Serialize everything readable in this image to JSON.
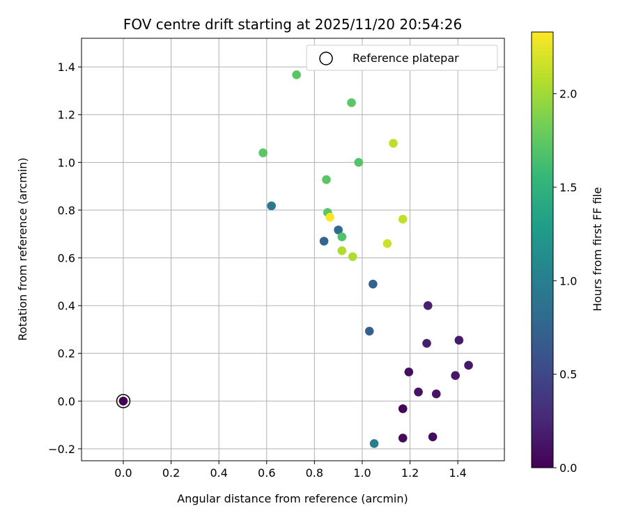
{
  "chart_data": {
    "type": "scatter",
    "title": "FOV centre drift starting at 2025/11/20 20:54:26",
    "xlabel": "Angular distance from reference (arcmin)",
    "ylabel": "Rotation from reference (arcmin)",
    "xlim": [
      -0.175,
      1.595
    ],
    "ylim": [
      -0.25,
      1.52
    ],
    "xticks": [
      0.0,
      0.2,
      0.4,
      0.6,
      0.8,
      1.0,
      1.2,
      1.4
    ],
    "xtick_labels": [
      "0.0",
      "0.2",
      "0.4",
      "0.6",
      "0.8",
      "1.0",
      "1.2",
      "1.4"
    ],
    "yticks": [
      -0.2,
      0.0,
      0.2,
      0.4,
      0.6,
      0.8,
      1.0,
      1.2,
      1.4
    ],
    "ytick_labels": [
      "−0.2",
      "0.0",
      "0.2",
      "0.4",
      "0.6",
      "0.8",
      "1.0",
      "1.2",
      "1.4"
    ],
    "grid": true,
    "legend": {
      "label": "Reference platepar",
      "location": "top-right"
    },
    "reference_point": {
      "x": 0.0,
      "y": 0.0
    },
    "colorbar": {
      "label": "Hours from first FF file",
      "min": 0.0,
      "max": 2.33,
      "colormap": "viridis",
      "ticks": [
        0.0,
        0.5,
        1.0,
        1.5,
        2.0
      ],
      "tick_labels": [
        "0.0",
        "0.5",
        "1.0",
        "1.5",
        "2.0"
      ]
    },
    "points": [
      {
        "x": 0.0,
        "y": 0.0,
        "c": 0.0
      },
      {
        "x": 1.17,
        "y": -0.032,
        "c": 0.02
      },
      {
        "x": 1.17,
        "y": -0.155,
        "c": 0.05
      },
      {
        "x": 1.295,
        "y": -0.15,
        "c": 0.07
      },
      {
        "x": 1.195,
        "y": 0.122,
        "c": 0.09
      },
      {
        "x": 1.235,
        "y": 0.038,
        "c": 0.11
      },
      {
        "x": 1.31,
        "y": 0.03,
        "c": 0.12
      },
      {
        "x": 1.39,
        "y": 0.107,
        "c": 0.14
      },
      {
        "x": 1.445,
        "y": 0.15,
        "c": 0.15
      },
      {
        "x": 1.405,
        "y": 0.255,
        "c": 0.17
      },
      {
        "x": 1.27,
        "y": 0.242,
        "c": 0.19
      },
      {
        "x": 1.275,
        "y": 0.4,
        "c": 0.21
      },
      {
        "x": 1.03,
        "y": 0.293,
        "c": 0.7
      },
      {
        "x": 1.045,
        "y": 0.49,
        "c": 0.72
      },
      {
        "x": 0.84,
        "y": 0.67,
        "c": 0.75
      },
      {
        "x": 0.9,
        "y": 0.717,
        "c": 0.8
      },
      {
        "x": 0.62,
        "y": 0.818,
        "c": 0.95
      },
      {
        "x": 1.05,
        "y": -0.178,
        "c": 1.0
      },
      {
        "x": 0.915,
        "y": 0.688,
        "c": 1.68
      },
      {
        "x": 0.855,
        "y": 0.79,
        "c": 1.72
      },
      {
        "x": 0.85,
        "y": 0.928,
        "c": 1.72
      },
      {
        "x": 0.985,
        "y": 1.0,
        "c": 1.7
      },
      {
        "x": 0.585,
        "y": 1.04,
        "c": 1.72
      },
      {
        "x": 0.725,
        "y": 1.367,
        "c": 1.72
      },
      {
        "x": 0.955,
        "y": 1.25,
        "c": 1.73
      },
      {
        "x": 0.915,
        "y": 0.63,
        "c": 2.05
      },
      {
        "x": 0.96,
        "y": 0.605,
        "c": 2.05
      },
      {
        "x": 1.105,
        "y": 0.66,
        "c": 2.15
      },
      {
        "x": 1.17,
        "y": 0.762,
        "c": 2.12
      },
      {
        "x": 1.13,
        "y": 1.08,
        "c": 2.1
      },
      {
        "x": 0.865,
        "y": 0.77,
        "c": 2.33
      }
    ]
  }
}
